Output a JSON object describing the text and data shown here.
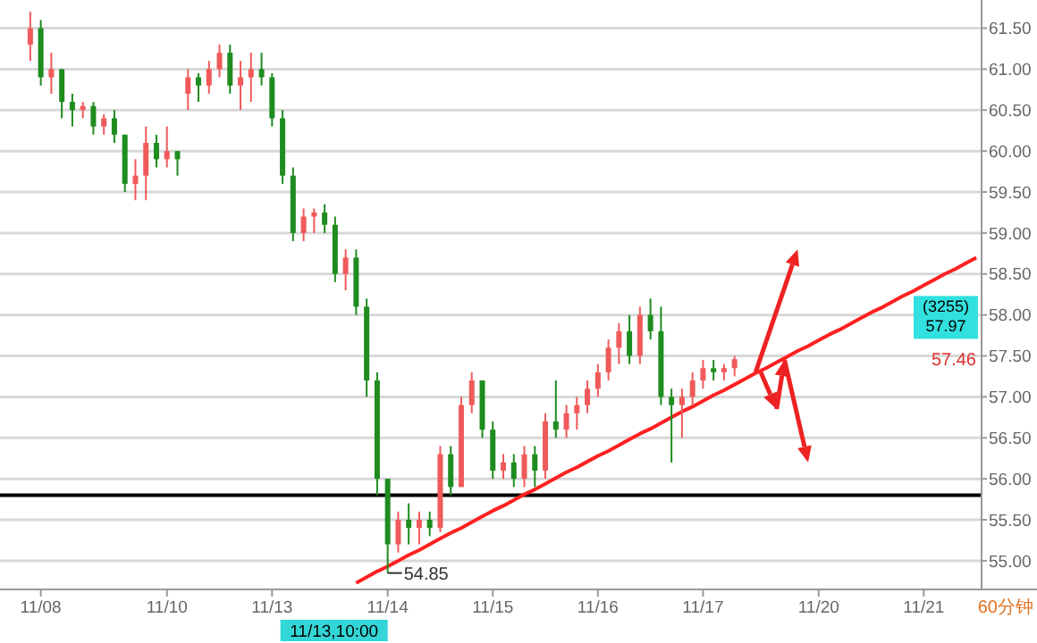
{
  "chart_data": {
    "type": "candlestick",
    "ylim": [
      54.65,
      61.8
    ],
    "categories": [
      null,
      "11/08",
      null,
      null,
      null,
      null,
      null,
      null,
      null,
      null,
      null,
      null,
      null,
      "11/10",
      null,
      null,
      null,
      null,
      null,
      null,
      null,
      null,
      null,
      "11/13",
      null,
      null,
      null,
      null,
      null,
      null,
      null,
      null,
      null,
      null,
      "11/14",
      null,
      null,
      null,
      null,
      null,
      null,
      null,
      null,
      null,
      "11/15",
      null,
      null,
      null,
      null,
      null,
      null,
      null,
      null,
      null,
      "11/16",
      null,
      null,
      null,
      null,
      null,
      null,
      null,
      null,
      null,
      "11/17",
      null,
      null,
      null,
      null,
      null,
      null,
      null,
      null,
      null,
      null,
      "11/20",
      null,
      null,
      null,
      null,
      null,
      null,
      null,
      null,
      null,
      "11/21",
      null,
      null,
      null,
      null,
      null
    ],
    "yticks": [
      {
        "value": 55,
        "label": "55.00"
      },
      {
        "value": 55.5,
        "label": "55.50"
      },
      {
        "value": 56,
        "label": "56.00"
      },
      {
        "value": 56.5,
        "label": "56.50"
      },
      {
        "value": 57,
        "label": "57.00"
      },
      {
        "value": 57.5,
        "label": "57.50"
      },
      {
        "value": 58,
        "label": "58.00"
      },
      {
        "value": 58.5,
        "label": "58.50"
      },
      {
        "value": 59,
        "label": "59.00"
      },
      {
        "value": 59.5,
        "label": "59.50"
      },
      {
        "value": 60,
        "label": "60.00"
      },
      {
        "value": 60.5,
        "label": "60.50"
      },
      {
        "value": 61,
        "label": "61.00"
      },
      {
        "value": 61.5,
        "label": "61.50"
      }
    ],
    "grid": "y",
    "ohlc": [
      [
        61.3,
        61.7,
        61.1,
        61.5
      ],
      [
        61.5,
        61.6,
        60.8,
        60.9
      ],
      [
        60.9,
        61.2,
        60.7,
        61.0
      ],
      [
        61.0,
        61.0,
        60.4,
        60.6
      ],
      [
        60.6,
        60.7,
        60.3,
        60.5
      ],
      [
        60.5,
        60.6,
        60.4,
        60.55
      ],
      [
        60.55,
        60.6,
        60.2,
        60.3
      ],
      [
        60.3,
        60.45,
        60.2,
        60.4
      ],
      [
        60.4,
        60.5,
        60.1,
        60.2
      ],
      [
        60.2,
        60.2,
        59.5,
        59.6
      ],
      [
        59.6,
        59.9,
        59.4,
        59.7
      ],
      [
        59.7,
        60.3,
        59.4,
        60.1
      ],
      [
        60.1,
        60.2,
        59.8,
        59.9
      ],
      [
        59.9,
        60.3,
        59.8,
        60.0
      ],
      [
        60.0,
        60.0,
        59.7,
        59.9
      ],
      [
        60.7,
        61.0,
        60.5,
        60.9
      ],
      [
        60.9,
        60.95,
        60.6,
        60.8
      ],
      [
        60.8,
        61.1,
        60.7,
        61.0
      ],
      [
        61.0,
        61.3,
        60.9,
        61.2
      ],
      [
        61.2,
        61.3,
        60.7,
        60.8
      ],
      [
        60.8,
        61.1,
        60.5,
        60.9
      ],
      [
        60.9,
        61.2,
        60.6,
        61.0
      ],
      [
        61.0,
        61.2,
        60.8,
        60.9
      ],
      [
        60.9,
        60.95,
        60.3,
        60.4
      ],
      [
        60.4,
        60.5,
        59.6,
        59.7
      ],
      [
        59.7,
        59.8,
        58.9,
        59.0
      ],
      [
        59.0,
        59.3,
        58.9,
        59.2
      ],
      [
        59.2,
        59.3,
        59.0,
        59.25
      ],
      [
        59.25,
        59.35,
        59.0,
        59.1
      ],
      [
        59.1,
        59.2,
        58.4,
        58.5
      ],
      [
        58.5,
        58.8,
        58.3,
        58.7
      ],
      [
        58.7,
        58.8,
        58.0,
        58.1
      ],
      [
        58.1,
        58.2,
        57.0,
        57.2
      ],
      [
        57.2,
        57.3,
        55.8,
        56.0
      ],
      [
        56.0,
        56.0,
        54.85,
        55.2
      ],
      [
        55.2,
        55.6,
        55.1,
        55.5
      ],
      [
        55.5,
        55.7,
        55.2,
        55.4
      ],
      [
        55.4,
        55.6,
        55.2,
        55.5
      ],
      [
        55.5,
        55.6,
        55.3,
        55.4
      ],
      [
        55.4,
        56.4,
        55.35,
        56.3
      ],
      [
        56.3,
        56.4,
        55.8,
        55.9
      ],
      [
        55.9,
        57.0,
        55.9,
        56.9
      ],
      [
        56.9,
        57.3,
        56.8,
        57.2
      ],
      [
        57.2,
        57.2,
        56.5,
        56.6
      ],
      [
        56.6,
        56.7,
        56.0,
        56.1
      ],
      [
        56.1,
        56.3,
        56.0,
        56.2
      ],
      [
        56.2,
        56.3,
        55.9,
        56.0
      ],
      [
        56.0,
        56.4,
        55.9,
        56.3
      ],
      [
        56.3,
        56.4,
        55.9,
        56.1
      ],
      [
        56.1,
        56.8,
        56.0,
        56.7
      ],
      [
        56.7,
        57.2,
        56.5,
        56.6
      ],
      [
        56.6,
        56.9,
        56.5,
        56.8
      ],
      [
        56.8,
        57.0,
        56.6,
        56.9
      ],
      [
        56.9,
        57.2,
        56.8,
        57.1
      ],
      [
        57.1,
        57.4,
        57.0,
        57.3
      ],
      [
        57.3,
        57.7,
        57.2,
        57.6
      ],
      [
        57.6,
        57.9,
        57.4,
        57.8
      ],
      [
        57.8,
        58.0,
        57.4,
        57.5
      ],
      [
        57.5,
        58.1,
        57.4,
        58.0
      ],
      [
        58.0,
        58.2,
        57.7,
        57.8
      ],
      [
        57.8,
        58.1,
        56.9,
        57.0
      ],
      [
        57.0,
        57.1,
        56.2,
        56.9
      ],
      [
        56.9,
        57.1,
        56.5,
        57.0
      ],
      [
        57.0,
        57.3,
        56.9,
        57.2
      ],
      [
        57.2,
        57.45,
        57.1,
        57.35
      ],
      [
        57.35,
        57.45,
        57.2,
        57.3
      ],
      [
        57.3,
        57.4,
        57.2,
        57.35
      ],
      [
        57.35,
        57.5,
        57.25,
        57.46
      ],
      null,
      null,
      null,
      null,
      null,
      null,
      null,
      null,
      null,
      null,
      null,
      null,
      null,
      null,
      null,
      null,
      null,
      null,
      null,
      null,
      null,
      null,
      null
    ],
    "colors": [
      "#f05a5a",
      "#1e8c1e",
      "#f05a5a",
      "#1e8c1e",
      "#1e8c1e",
      "#f05a5a",
      "#1e8c1e",
      "#f05a5a",
      "#1e8c1e",
      "#1e8c1e",
      "#f05a5a",
      "#f05a5a",
      "#1e8c1e",
      "#f05a5a",
      "#1e8c1e",
      "#f05a5a",
      "#1e8c1e",
      "#f05a5a",
      "#f05a5a",
      "#1e8c1e",
      "#f05a5a",
      "#f05a5a",
      "#1e8c1e",
      "#1e8c1e",
      "#1e8c1e",
      "#1e8c1e",
      "#f05a5a",
      "#f05a5a",
      "#1e8c1e",
      "#1e8c1e",
      "#f05a5a",
      "#1e8c1e",
      "#1e8c1e",
      "#1e8c1e",
      "#1e8c1e",
      "#f05a5a",
      "#1e8c1e",
      "#f05a5a",
      "#1e8c1e",
      "#f05a5a",
      "#1e8c1e",
      "#f05a5a",
      "#f05a5a",
      "#1e8c1e",
      "#1e8c1e",
      "#f05a5a",
      "#1e8c1e",
      "#f05a5a",
      "#1e8c1e",
      "#f05a5a",
      "#1e8c1e",
      "#f05a5a",
      "#f05a5a",
      "#f05a5a",
      "#f05a5a",
      "#f05a5a",
      "#f05a5a",
      "#1e8c1e",
      "#f05a5a",
      "#1e8c1e",
      "#1e8c1e",
      "#1e8c1e",
      "#f05a5a",
      "#f05a5a",
      "#f05a5a",
      "#1e8c1e",
      "#f05a5a",
      "#f05a5a",
      null,
      null,
      null,
      null,
      null,
      null,
      null,
      null,
      null,
      null,
      null,
      null,
      null,
      null,
      null,
      null,
      null,
      null,
      null,
      null,
      null,
      null,
      null
    ],
    "series": [
      {
        "type": "line",
        "color": "#ff2020",
        "values": [
          null,
          null,
          null,
          null,
          null,
          null,
          null,
          null,
          null,
          null,
          null,
          null,
          null,
          null,
          null,
          null,
          null,
          null,
          null,
          null,
          null,
          null,
          null,
          null,
          null,
          null,
          null,
          null,
          null,
          null,
          null,
          54.73,
          54.8,
          54.87,
          54.93,
          55.0,
          55.07,
          55.13,
          55.2,
          55.27,
          55.34,
          55.4,
          55.47,
          55.54,
          55.61,
          55.67,
          55.74,
          55.81,
          55.87,
          55.94,
          56.01,
          56.08,
          56.14,
          56.21,
          56.28,
          56.34,
          56.41,
          56.48,
          56.55,
          56.61,
          56.68,
          56.75,
          56.82,
          56.88,
          56.95,
          57.02,
          57.08,
          57.15,
          57.22,
          57.29,
          57.35,
          57.42,
          57.49,
          57.56,
          57.62,
          57.69,
          57.76,
          57.82,
          57.89,
          57.96,
          58.03,
          58.09,
          58.16,
          58.23,
          58.29,
          58.36,
          58.43,
          58.5,
          58.56,
          58.63,
          58.7
        ]
      }
    ],
    "ref_lines": [
      {
        "axis": "y",
        "value": 55.8,
        "color": "#000000"
      }
    ],
    "annotations": [
      "54.85",
      "57.46",
      "11/13,10:00",
      "(3255)",
      "57.97",
      "60分钟"
    ]
  }
}
